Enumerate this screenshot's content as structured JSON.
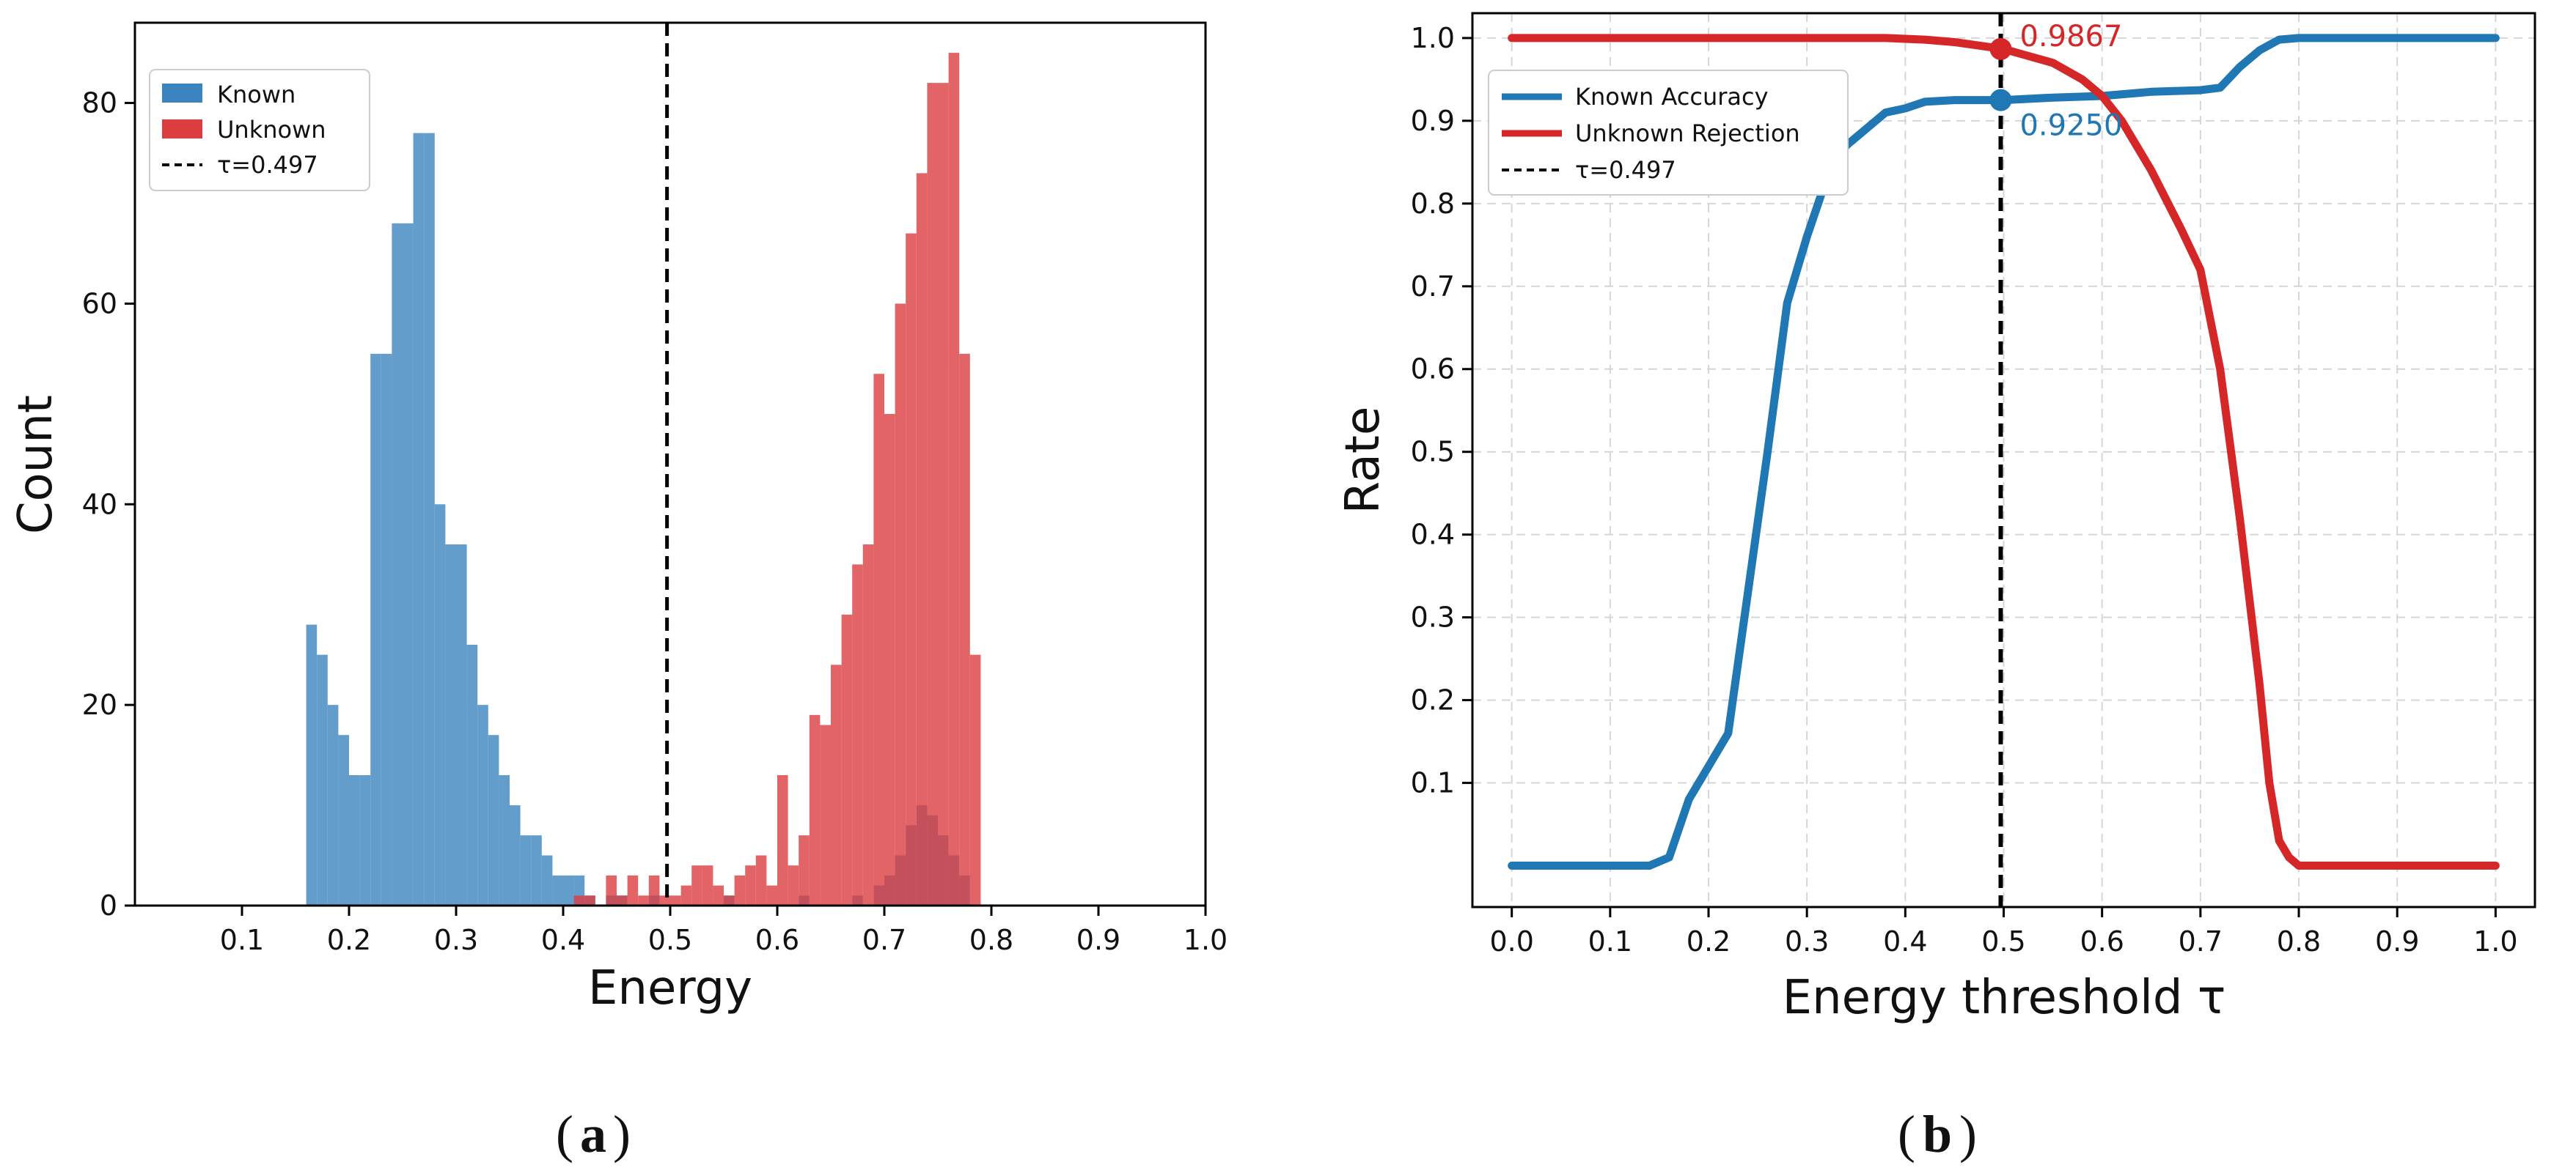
{
  "figure": {
    "caption_a": "a",
    "caption_b": "b"
  },
  "chart_data": [
    {
      "type": "bar",
      "subtype": "histogram",
      "xlabel": "Energy",
      "ylabel": "Count",
      "xlim": [
        0.0,
        1.0
      ],
      "ylim": [
        0,
        88
      ],
      "xticks": [
        "0.1",
        "0.2",
        "0.3",
        "0.4",
        "0.5",
        "0.6",
        "0.7",
        "0.8",
        "0.9",
        "1.0"
      ],
      "yticks": [
        "0",
        "20",
        "40",
        "60",
        "80"
      ],
      "grid": false,
      "legend_position": "upper-left",
      "bin_width": 0.01,
      "series": [
        {
          "name": "Known",
          "color": "#3c84bf",
          "bins": [
            [
              0.16,
              28
            ],
            [
              0.17,
              25
            ],
            [
              0.18,
              20
            ],
            [
              0.19,
              17
            ],
            [
              0.2,
              13
            ],
            [
              0.21,
              13
            ],
            [
              0.22,
              55
            ],
            [
              0.23,
              55
            ],
            [
              0.24,
              68
            ],
            [
              0.25,
              68
            ],
            [
              0.26,
              77
            ],
            [
              0.27,
              77
            ],
            [
              0.28,
              40
            ],
            [
              0.29,
              36
            ],
            [
              0.3,
              36
            ],
            [
              0.31,
              26
            ],
            [
              0.32,
              20
            ],
            [
              0.33,
              17
            ],
            [
              0.34,
              13
            ],
            [
              0.35,
              10
            ],
            [
              0.36,
              7
            ],
            [
              0.37,
              7
            ],
            [
              0.38,
              5
            ],
            [
              0.39,
              3
            ],
            [
              0.4,
              3
            ],
            [
              0.41,
              3
            ],
            [
              0.42,
              1
            ],
            [
              0.44,
              1
            ],
            [
              0.45,
              1
            ],
            [
              0.48,
              1
            ],
            [
              0.55,
              1
            ],
            [
              0.62,
              1
            ],
            [
              0.67,
              1
            ],
            [
              0.69,
              2
            ],
            [
              0.7,
              3
            ],
            [
              0.71,
              5
            ],
            [
              0.72,
              8
            ],
            [
              0.73,
              10
            ],
            [
              0.74,
              9
            ],
            [
              0.75,
              7
            ],
            [
              0.76,
              5
            ],
            [
              0.77,
              3
            ]
          ]
        },
        {
          "name": "Unknown",
          "color": "#dc3d40",
          "bins": [
            [
              0.41,
              1
            ],
            [
              0.42,
              1
            ],
            [
              0.44,
              3
            ],
            [
              0.45,
              1
            ],
            [
              0.46,
              3
            ],
            [
              0.47,
              1
            ],
            [
              0.48,
              3
            ],
            [
              0.49,
              1
            ],
            [
              0.5,
              1
            ],
            [
              0.51,
              2
            ],
            [
              0.52,
              4
            ],
            [
              0.53,
              4
            ],
            [
              0.54,
              2
            ],
            [
              0.55,
              1
            ],
            [
              0.56,
              3
            ],
            [
              0.57,
              4
            ],
            [
              0.58,
              5
            ],
            [
              0.59,
              2
            ],
            [
              0.6,
              13
            ],
            [
              0.61,
              4
            ],
            [
              0.62,
              7
            ],
            [
              0.63,
              19
            ],
            [
              0.64,
              18
            ],
            [
              0.65,
              24
            ],
            [
              0.66,
              29
            ],
            [
              0.67,
              34
            ],
            [
              0.68,
              36
            ],
            [
              0.69,
              53
            ],
            [
              0.7,
              49
            ],
            [
              0.71,
              60
            ],
            [
              0.72,
              67
            ],
            [
              0.73,
              73
            ],
            [
              0.74,
              82
            ],
            [
              0.75,
              82
            ],
            [
              0.76,
              85
            ],
            [
              0.77,
              55
            ],
            [
              0.78,
              25
            ]
          ]
        }
      ],
      "threshold": {
        "label": "τ=0.497",
        "value": 0.497,
        "color": "#000000"
      }
    },
    {
      "type": "line",
      "xlabel": "Energy threshold τ",
      "ylabel": "Rate",
      "xlim": [
        -0.04,
        1.04
      ],
      "ylim": [
        -0.05,
        1.03
      ],
      "xticks": [
        "0.0",
        "0.1",
        "0.2",
        "0.3",
        "0.4",
        "0.5",
        "0.6",
        "0.7",
        "0.8",
        "0.9",
        "1.0"
      ],
      "yticks": [
        "0.1",
        "0.2",
        "0.3",
        "0.4",
        "0.5",
        "0.6",
        "0.7",
        "0.8",
        "0.9",
        "1.0"
      ],
      "grid": true,
      "legend_position": "upper-left",
      "series": [
        {
          "name": "Known Accuracy",
          "color": "#1f77b4",
          "x": [
            0.0,
            0.05,
            0.1,
            0.14,
            0.16,
            0.18,
            0.2,
            0.22,
            0.24,
            0.26,
            0.28,
            0.3,
            0.32,
            0.34,
            0.36,
            0.38,
            0.4,
            0.42,
            0.45,
            0.5,
            0.55,
            0.6,
            0.65,
            0.7,
            0.72,
            0.74,
            0.76,
            0.78,
            0.8,
            0.85,
            0.9,
            0.95,
            1.0
          ],
          "y": [
            0.0,
            0.0,
            0.0,
            0.0,
            0.01,
            0.08,
            0.12,
            0.16,
            0.33,
            0.5,
            0.68,
            0.76,
            0.83,
            0.87,
            0.89,
            0.91,
            0.915,
            0.923,
            0.925,
            0.925,
            0.928,
            0.93,
            0.935,
            0.937,
            0.94,
            0.965,
            0.985,
            0.998,
            1.0,
            1.0,
            1.0,
            1.0,
            1.0
          ]
        },
        {
          "name": "Unknown Rejection",
          "color": "#d62728",
          "x": [
            0.0,
            0.1,
            0.2,
            0.3,
            0.38,
            0.42,
            0.45,
            0.48,
            0.5,
            0.52,
            0.55,
            0.58,
            0.6,
            0.62,
            0.65,
            0.68,
            0.7,
            0.72,
            0.74,
            0.76,
            0.77,
            0.78,
            0.79,
            0.8,
            0.85,
            0.9,
            0.95,
            1.0
          ],
          "y": [
            1.0,
            1.0,
            1.0,
            1.0,
            1.0,
            0.998,
            0.995,
            0.99,
            0.9867,
            0.98,
            0.97,
            0.95,
            0.93,
            0.9,
            0.84,
            0.77,
            0.72,
            0.6,
            0.42,
            0.22,
            0.1,
            0.03,
            0.01,
            0.0,
            0.0,
            0.0,
            0.0,
            0.0
          ]
        }
      ],
      "threshold": {
        "label": "τ=0.497",
        "value": 0.497,
        "color": "#000000"
      },
      "annotations": [
        {
          "text": "0.9867",
          "x": 0.497,
          "y": 0.9867,
          "color": "#d62728"
        },
        {
          "text": "0.9250",
          "x": 0.497,
          "y": 0.925,
          "color": "#1f77b4"
        }
      ]
    }
  ]
}
